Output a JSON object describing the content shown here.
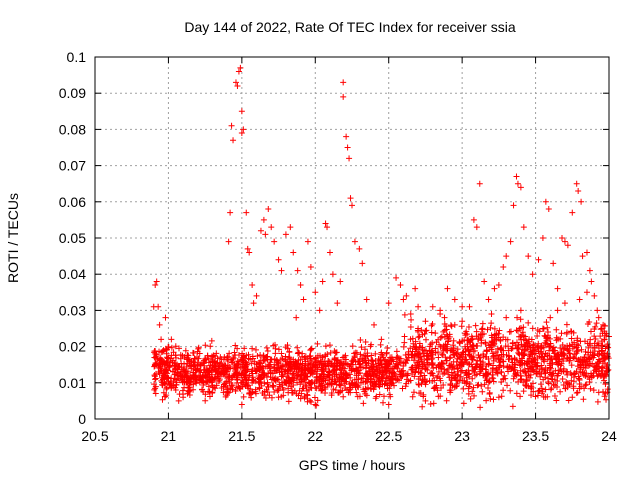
{
  "chart_data": {
    "type": "scatter",
    "title": "Day 144 of 2022, Rate Of TEC Index for receiver ssia",
    "xlabel": "GPS time / hours",
    "ylabel": "ROTI / TECUs",
    "xlim": [
      20.5,
      24
    ],
    "ylim": [
      0,
      0.1
    ],
    "xticks": [
      "20.5",
      "21",
      "21.5",
      "22",
      "22.5",
      "23",
      "23.5",
      "24"
    ],
    "yticks": [
      "0",
      "0.01",
      "0.02",
      "0.03",
      "0.04",
      "0.05",
      "0.06",
      "0.07",
      "0.08",
      "0.09",
      "0.1"
    ],
    "grid": true,
    "marker": "+",
    "point_color": "#ff0000",
    "series": [
      {
        "name": "ssia",
        "points": [
          [
            20.92,
            0.038
          ],
          [
            20.91,
            0.037
          ],
          [
            20.93,
            0.031
          ],
          [
            20.9,
            0.031
          ],
          [
            20.94,
            0.026
          ],
          [
            20.98,
            0.028
          ],
          [
            21.02,
            0.022
          ],
          [
            20.95,
            0.022
          ],
          [
            20.91,
            0.018
          ],
          [
            20.93,
            0.015
          ],
          [
            20.97,
            0.012
          ],
          [
            21.05,
            0.008
          ],
          [
            21.07,
            0.005
          ],
          [
            21.1,
            0.006
          ],
          [
            21.15,
            0.01
          ],
          [
            21.2,
            0.014
          ],
          [
            21.25,
            0.012
          ],
          [
            21.3,
            0.016
          ],
          [
            21.35,
            0.011
          ],
          [
            21.4,
            0.013
          ],
          [
            21.46,
            0.093
          ],
          [
            21.47,
            0.092
          ],
          [
            21.48,
            0.096
          ],
          [
            21.49,
            0.097
          ],
          [
            21.5,
            0.085
          ],
          [
            21.51,
            0.08
          ],
          [
            21.5,
            0.079
          ],
          [
            21.44,
            0.077
          ],
          [
            21.43,
            0.081
          ],
          [
            21.42,
            0.057
          ],
          [
            21.41,
            0.049
          ],
          [
            21.53,
            0.057
          ],
          [
            21.54,
            0.047
          ],
          [
            21.55,
            0.046
          ],
          [
            21.57,
            0.037
          ],
          [
            21.58,
            0.032
          ],
          [
            21.6,
            0.034
          ],
          [
            21.63,
            0.052
          ],
          [
            21.65,
            0.055
          ],
          [
            21.66,
            0.051
          ],
          [
            21.68,
            0.058
          ],
          [
            21.7,
            0.053
          ],
          [
            21.72,
            0.049
          ],
          [
            21.75,
            0.044
          ],
          [
            21.77,
            0.041
          ],
          [
            21.8,
            0.051
          ],
          [
            21.83,
            0.053
          ],
          [
            21.85,
            0.046
          ],
          [
            21.88,
            0.041
          ],
          [
            21.9,
            0.037
          ],
          [
            21.87,
            0.028
          ],
          [
            21.92,
            0.033
          ],
          [
            21.95,
            0.049
          ],
          [
            21.97,
            0.042
          ],
          [
            22.0,
            0.035
          ],
          [
            22.03,
            0.03
          ],
          [
            22.05,
            0.038
          ],
          [
            22.07,
            0.054
          ],
          [
            22.08,
            0.053
          ],
          [
            22.1,
            0.046
          ],
          [
            22.12,
            0.04
          ],
          [
            22.15,
            0.032
          ],
          [
            22.17,
            0.038
          ],
          [
            22.19,
            0.093
          ],
          [
            22.19,
            0.089
          ],
          [
            22.21,
            0.078
          ],
          [
            22.22,
            0.075
          ],
          [
            22.23,
            0.072
          ],
          [
            22.24,
            0.061
          ],
          [
            22.25,
            0.059
          ],
          [
            22.27,
            0.049
          ],
          [
            22.3,
            0.047
          ],
          [
            22.32,
            0.043
          ],
          [
            22.35,
            0.033
          ],
          [
            22.4,
            0.026
          ],
          [
            22.45,
            0.022
          ],
          [
            22.5,
            0.032
          ],
          [
            22.55,
            0.039
          ],
          [
            22.58,
            0.037
          ],
          [
            22.62,
            0.034
          ],
          [
            22.65,
            0.029
          ],
          [
            22.7,
            0.025
          ],
          [
            22.75,
            0.027
          ],
          [
            22.8,
            0.031
          ],
          [
            22.85,
            0.029
          ],
          [
            22.9,
            0.036
          ],
          [
            22.95,
            0.033
          ],
          [
            23.0,
            0.031
          ],
          [
            23.05,
            0.031
          ],
          [
            23.08,
            0.055
          ],
          [
            23.1,
            0.053
          ],
          [
            23.12,
            0.065
          ],
          [
            23.15,
            0.038
          ],
          [
            23.18,
            0.033
          ],
          [
            23.22,
            0.036
          ],
          [
            23.25,
            0.037
          ],
          [
            23.28,
            0.042
          ],
          [
            23.3,
            0.045
          ],
          [
            23.33,
            0.049
          ],
          [
            23.35,
            0.059
          ],
          [
            23.37,
            0.067
          ],
          [
            23.38,
            0.065
          ],
          [
            23.4,
            0.064
          ],
          [
            23.42,
            0.053
          ],
          [
            23.45,
            0.045
          ],
          [
            23.48,
            0.04
          ],
          [
            23.52,
            0.044
          ],
          [
            23.55,
            0.05
          ],
          [
            23.57,
            0.06
          ],
          [
            23.59,
            0.058
          ],
          [
            23.62,
            0.043
          ],
          [
            23.65,
            0.036
          ],
          [
            23.68,
            0.05
          ],
          [
            23.7,
            0.049
          ],
          [
            23.72,
            0.048
          ],
          [
            23.75,
            0.057
          ],
          [
            23.78,
            0.065
          ],
          [
            23.79,
            0.063
          ],
          [
            23.81,
            0.06
          ],
          [
            23.82,
            0.045
          ],
          [
            23.85,
            0.046
          ],
          [
            23.87,
            0.041
          ],
          [
            23.9,
            0.034
          ],
          [
            23.92,
            0.03
          ],
          [
            23.95,
            0.025
          ],
          [
            23.97,
            0.022
          ],
          [
            23.99,
            0.018
          ],
          [
            22.5,
            0.004
          ],
          [
            22.75,
            0.005
          ],
          [
            23.25,
            0.006
          ],
          [
            23.75,
            0.006
          ],
          [
            22.0,
            0.004
          ],
          [
            21.75,
            0.006
          ],
          [
            21.5,
            0.004
          ],
          [
            23.55,
            0.025
          ],
          [
            23.6,
            0.028
          ],
          [
            23.65,
            0.03
          ],
          [
            23.8,
            0.033
          ],
          [
            23.85,
            0.035
          ],
          [
            23.88,
            0.038
          ],
          [
            23.93,
            0.028
          ],
          [
            23.96,
            0.026
          ],
          [
            23.98,
            0.023
          ],
          [
            23.7,
            0.032
          ],
          [
            23.4,
            0.03
          ],
          [
            23.3,
            0.028
          ],
          [
            23.2,
            0.029
          ],
          [
            23.0,
            0.027
          ],
          [
            22.95,
            0.026
          ],
          [
            22.85,
            0.03
          ],
          [
            22.88,
            0.028
          ],
          [
            22.7,
            0.031
          ],
          [
            22.68,
            0.036
          ],
          [
            22.6,
            0.033
          ]
        ]
      }
    ]
  }
}
